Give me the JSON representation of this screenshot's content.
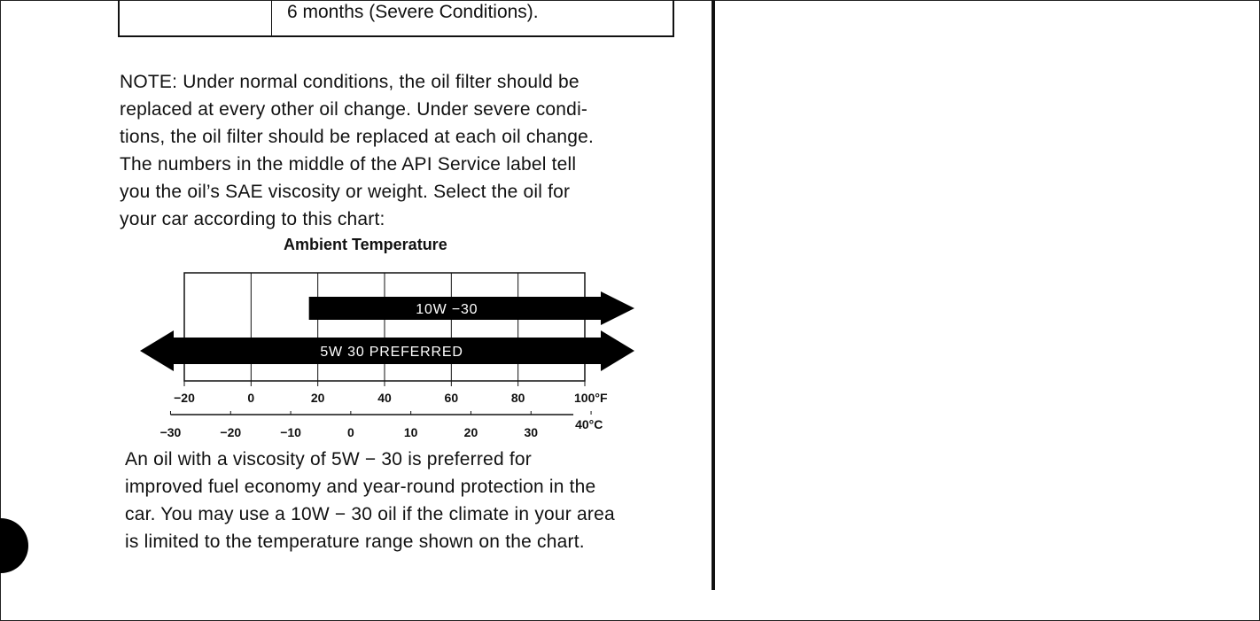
{
  "table_fragment": {
    "cell_text": "6 months (Severe Conditions)."
  },
  "note_lines": [
    "NOTE: Under normal conditions, the oil filter should be",
    "replaced at every other oil change. Under severe condi-",
    "tions, the oil filter should be replaced at each oil change.",
    "The numbers in the middle of the API Service label tell",
    "you the oil’s SAE viscosity or weight. Select the oil for",
    "your car according to this chart:"
  ],
  "chart_data": {
    "type": "bar",
    "title": "Ambient Temperature",
    "series": [
      {
        "name": "10W −30",
        "start_f": 20,
        "end_f": 100,
        "open_end": "right"
      },
      {
        "name": "5W 30 PREFERRED",
        "start_f": -20,
        "end_f": 100,
        "open_end": "both"
      }
    ],
    "f_ticks": [
      "−20",
      "0",
      "20",
      "40",
      "60",
      "80",
      "100°F"
    ],
    "c_ticks": [
      "−30",
      "−20",
      "−10",
      "0",
      "10",
      "20",
      "30",
      "40°C"
    ],
    "xlim_f": [
      -20,
      100
    ]
  },
  "bottom_lines": [
    "An oil with a viscosity of 5W − 30 is preferred for",
    "improved fuel economy and year-round protection in the",
    "car. You may use a 10W − 30 oil if the climate in your area",
    "is limited to the temperature range shown on the chart."
  ]
}
